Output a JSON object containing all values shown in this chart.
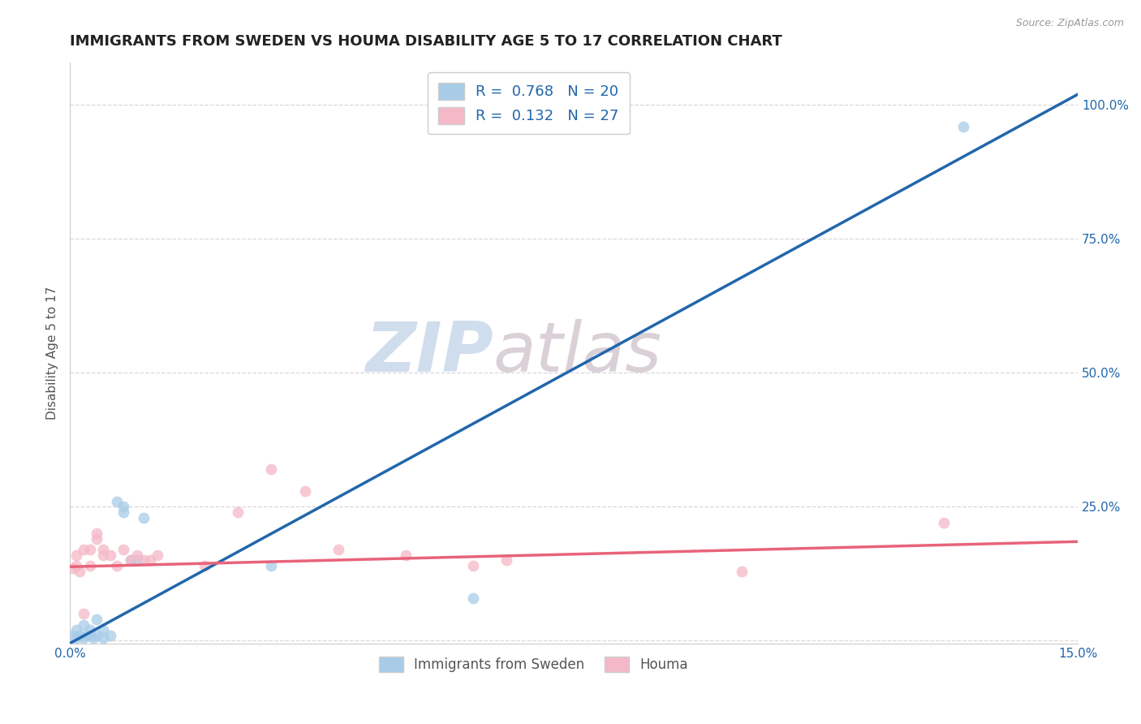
{
  "title": "IMMIGRANTS FROM SWEDEN VS HOUMA DISABILITY AGE 5 TO 17 CORRELATION CHART",
  "source": "Source: ZipAtlas.com",
  "ylabel": "Disability Age 5 to 17",
  "xlim": [
    0.0,
    0.15
  ],
  "ylim": [
    -0.005,
    1.08
  ],
  "yticks": [
    0.0,
    0.25,
    0.5,
    0.75,
    1.0
  ],
  "ytick_labels": [
    "",
    "25.0%",
    "50.0%",
    "75.0%",
    "100.0%"
  ],
  "xticks": [
    0.0,
    0.025,
    0.05,
    0.075,
    0.1,
    0.125,
    0.15
  ],
  "xtick_labels": [
    "0.0%",
    "",
    "",
    "",
    "",
    "",
    "15.0%"
  ],
  "legend_label1": "Immigrants from Sweden",
  "legend_label2": "Houma",
  "color_blue": "#a8cce8",
  "color_pink": "#f5b8c8",
  "line_blue": "#2166ac",
  "line_pink": "#e8637a",
  "watermark_zip": "ZIP",
  "watermark_atlas": "atlas",
  "sweden_scatter_x": [
    0.0005,
    0.001,
    0.001,
    0.0015,
    0.002,
    0.002,
    0.0025,
    0.003,
    0.003,
    0.0035,
    0.004,
    0.004,
    0.005,
    0.005,
    0.006,
    0.007,
    0.008,
    0.008,
    0.009,
    0.01,
    0.011,
    0.03,
    0.06,
    0.133
  ],
  "sweden_scatter_y": [
    0.01,
    0.005,
    0.02,
    0.01,
    0.005,
    0.03,
    0.01,
    0.01,
    0.02,
    0.005,
    0.01,
    0.04,
    0.005,
    0.02,
    0.01,
    0.26,
    0.25,
    0.24,
    0.15,
    0.15,
    0.23,
    0.14,
    0.08,
    0.96
  ],
  "houma_scatter_x": [
    0.0005,
    0.001,
    0.001,
    0.0015,
    0.002,
    0.002,
    0.003,
    0.003,
    0.004,
    0.004,
    0.005,
    0.005,
    0.006,
    0.007,
    0.008,
    0.009,
    0.01,
    0.011,
    0.012,
    0.013,
    0.02,
    0.025,
    0.03,
    0.035,
    0.04,
    0.05,
    0.06,
    0.065,
    0.1,
    0.13
  ],
  "houma_scatter_y": [
    0.135,
    0.14,
    0.16,
    0.13,
    0.17,
    0.05,
    0.14,
    0.17,
    0.19,
    0.2,
    0.17,
    0.16,
    0.16,
    0.14,
    0.17,
    0.15,
    0.16,
    0.15,
    0.15,
    0.16,
    0.14,
    0.24,
    0.32,
    0.28,
    0.17,
    0.16,
    0.14,
    0.15,
    0.13,
    0.22
  ],
  "sweden_line_x": [
    0.0,
    0.15
  ],
  "sweden_line_y": [
    -0.005,
    1.02
  ],
  "houma_line_x": [
    0.0,
    0.15
  ],
  "houma_line_y": [
    0.138,
    0.185
  ],
  "background_color": "#ffffff",
  "grid_color": "#d8d8d8",
  "title_fontsize": 13,
  "axis_label_fontsize": 11,
  "tick_fontsize": 11,
  "tick_color_blue": "#2166ac",
  "marker_size": 100,
  "legend_fontsize": 13
}
